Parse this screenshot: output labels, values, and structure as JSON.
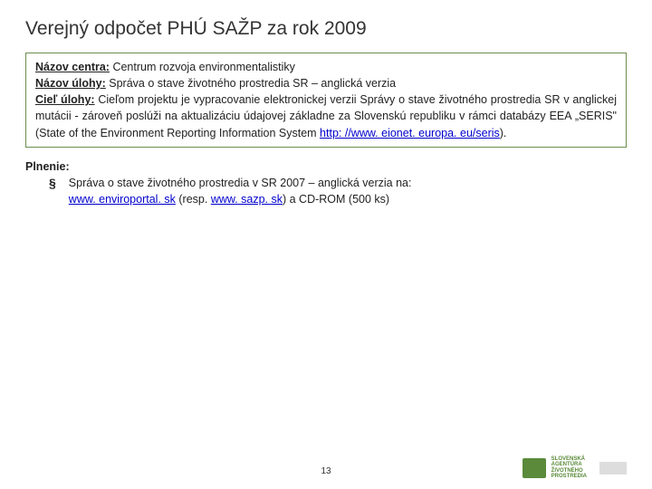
{
  "title": "Verejný odpočet PHÚ SAŽP za rok 2009",
  "box": {
    "label1": "Názov centra:",
    "val1": " Centrum rozvoja environmentalistiky",
    "label2": "Názov úlohy:",
    "val2": " Správa o stave životného prostredia SR – anglická verzia",
    "label3": "Cieľ úlohy:",
    "val3_a": " Cieľom projektu je vypracovanie elektronickej verzii Správy o stave životného prostredia SR v anglickej mutácii - zároveň poslúži na aktualizáciu údajovej základne za Slovenskú republiku v rámci databázy EEA „SERIS\" (State of the Environment Reporting Information System ",
    "link": "http: //www. eionet. europa. eu/seris",
    "val3_b": ")."
  },
  "plnenie": {
    "label": "Plnenie:",
    "text_a": "Správa o stave životného prostredia v SR 2007 – anglická verzia na: ",
    "link1": "www. enviroportal. sk",
    "text_b": " (resp. ",
    "link2": "www. sazp. sk",
    "text_c": ") a CD-ROM (500 ks)"
  },
  "page": "13",
  "logo": {
    "line1": "SLOVENSKÁ",
    "line2": "AGENTÚRA",
    "line3": "ŽIVOTNÉHO",
    "line4": "PROSTREDIA"
  },
  "colors": {
    "border": "#6b8e4e",
    "link": "#0000cc",
    "logo": "#5a8a3a"
  }
}
